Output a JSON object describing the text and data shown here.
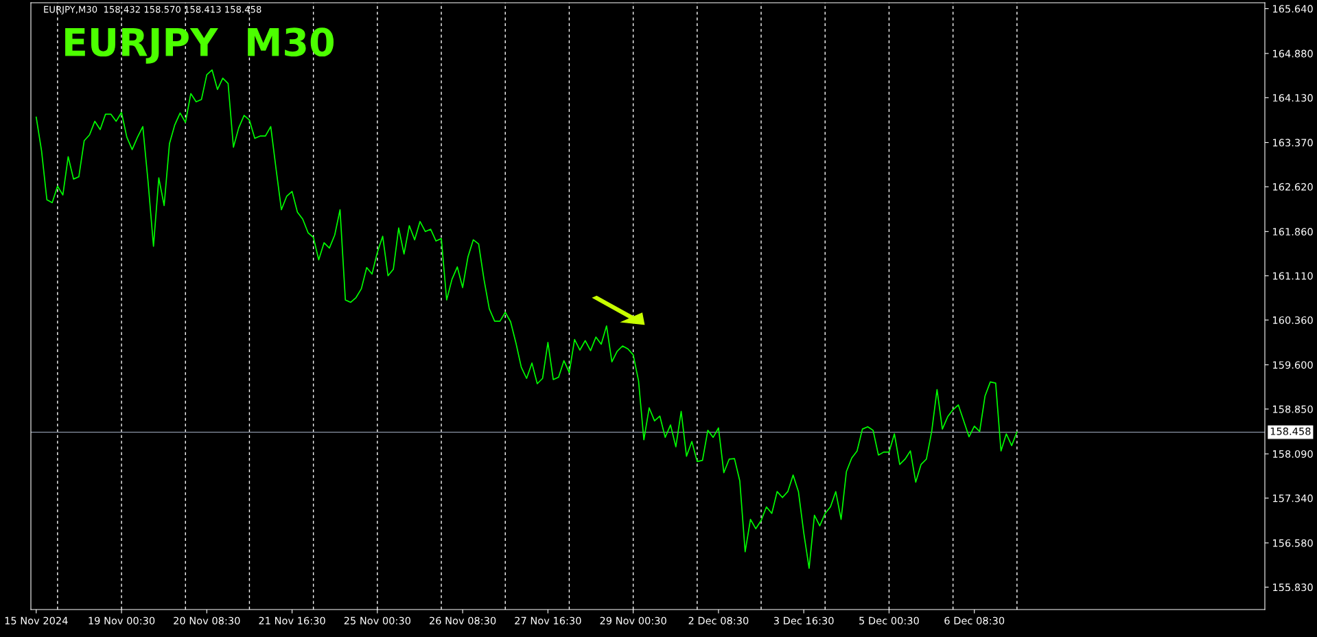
{
  "chart_data": {
    "type": "line",
    "title": "EURJPY  M30",
    "subtitle": "EURJPY,M30  158.432 158.570 158.413 158.458",
    "color": "#00ff00",
    "categories": [
      "15 Nov 2024",
      null,
      null,
      null,
      null,
      null,
      null,
      null,
      null,
      null,
      null,
      null,
      null,
      null,
      null,
      null,
      "19 Nov 00:30",
      null,
      null,
      null,
      null,
      null,
      null,
      null,
      null,
      null,
      null,
      null,
      null,
      null,
      null,
      null,
      "20 Nov 08:30",
      null,
      null,
      null,
      null,
      null,
      null,
      null,
      null,
      null,
      null,
      null,
      null,
      null,
      null,
      null,
      "21 Nov 16:30",
      null,
      null,
      null,
      null,
      null,
      null,
      null,
      null,
      null,
      null,
      null,
      null,
      null,
      null,
      null,
      "25 Nov 00:30",
      null,
      null,
      null,
      null,
      null,
      null,
      null,
      null,
      null,
      null,
      null,
      null,
      null,
      null,
      null,
      "26 Nov 08:30",
      null,
      null,
      null,
      null,
      null,
      null,
      null,
      null,
      null,
      null,
      null,
      null,
      null,
      null,
      null,
      "27 Nov 16:30",
      null,
      null,
      null,
      null,
      null,
      null,
      null,
      null,
      null,
      null,
      null,
      null,
      null,
      null,
      null,
      "29 Nov 00:30",
      null,
      null,
      null,
      null,
      null,
      null,
      null,
      null,
      null,
      null,
      null,
      null,
      null,
      null,
      null,
      "2 Dec 08:30",
      null,
      null,
      null,
      null,
      null,
      null,
      null,
      null,
      null,
      null,
      null,
      null,
      null,
      null,
      null,
      "3 Dec 16:30",
      null,
      null,
      null,
      null,
      null,
      null,
      null,
      null,
      null,
      null,
      null,
      null,
      null,
      null,
      null,
      "5 Dec 00:30",
      null,
      null,
      null,
      null,
      null,
      null,
      null,
      null,
      null,
      null,
      null,
      null,
      null,
      null,
      null,
      "6 Dec 08:30",
      null,
      null,
      null,
      null,
      null,
      null,
      null,
      null,
      null,
      null,
      null,
      null,
      null,
      null,
      null,
      null,
      null,
      null,
      null,
      null,
      null,
      null,
      null,
      null,
      null,
      null,
      null,
      null,
      null,
      null,
      null,
      null,
      null,
      null,
      null,
      null,
      null,
      null,
      null,
      null,
      null,
      null,
      null,
      null,
      null,
      null,
      null,
      null,
      null,
      null,
      null,
      null,
      null,
      null
    ],
    "values": [
      163.8,
      163.23,
      162.4,
      162.35,
      162.63,
      162.48,
      163.13,
      162.75,
      162.79,
      163.4,
      163.5,
      163.73,
      163.59,
      163.85,
      163.85,
      163.73,
      163.88,
      163.46,
      163.25,
      163.46,
      163.64,
      162.69,
      161.61,
      162.77,
      162.3,
      163.35,
      163.67,
      163.87,
      163.71,
      164.2,
      164.06,
      164.1,
      164.52,
      164.6,
      164.27,
      164.46,
      164.37,
      163.29,
      163.62,
      163.83,
      163.75,
      163.44,
      163.48,
      163.48,
      163.64,
      162.92,
      162.23,
      162.46,
      162.54,
      162.19,
      162.07,
      161.84,
      161.76,
      161.38,
      161.67,
      161.58,
      161.8,
      162.23,
      160.7,
      160.66,
      160.74,
      160.89,
      161.25,
      161.14,
      161.51,
      161.78,
      161.11,
      161.22,
      161.92,
      161.48,
      161.96,
      161.72,
      162.03,
      161.86,
      161.9,
      161.7,
      161.74,
      160.7,
      161.05,
      161.26,
      160.91,
      161.43,
      161.72,
      161.65,
      161.05,
      160.55,
      160.34,
      160.34,
      160.49,
      160.33,
      159.97,
      159.56,
      159.37,
      159.63,
      159.28,
      159.37,
      159.98,
      159.35,
      159.39,
      159.67,
      159.47,
      160.03,
      159.85,
      160.01,
      159.84,
      160.07,
      159.95,
      160.26,
      159.65,
      159.83,
      159.92,
      159.87,
      159.77,
      159.33,
      158.33,
      158.87,
      158.65,
      158.73,
      158.37,
      158.58,
      158.21,
      158.81,
      158.05,
      158.3,
      157.96,
      157.98,
      158.49,
      158.37,
      158.53,
      157.77,
      158.0,
      158.01,
      157.63,
      156.43,
      156.98,
      156.82,
      156.96,
      157.19,
      157.08,
      157.45,
      157.35,
      157.45,
      157.73,
      157.45,
      156.75,
      156.15,
      157.05,
      156.87,
      157.08,
      157.19,
      157.45,
      156.98,
      157.79,
      158.02,
      158.14,
      158.51,
      158.55,
      158.49,
      158.07,
      158.12,
      158.12,
      158.43,
      157.91,
      158.0,
      158.14,
      157.61,
      157.91,
      158.0,
      158.47,
      159.18,
      158.51,
      158.72,
      158.84,
      158.92,
      158.65,
      158.38,
      158.56,
      158.47,
      159.07,
      159.31,
      159.29,
      158.14,
      158.43,
      158.23,
      158.46,
      null,
      null,
      null,
      null,
      null,
      null,
      null,
      null,
      null,
      null,
      null,
      null,
      null,
      null,
      null,
      null,
      null,
      null,
      null,
      null,
      null,
      null,
      null,
      null,
      null,
      null,
      null,
      null,
      null,
      null,
      null,
      null,
      null,
      null,
      null,
      null,
      null,
      null,
      null,
      null,
      null,
      null,
      null,
      null,
      null,
      null
    ],
    "ylim": [
      155.45,
      165.74
    ],
    "yticks": [
      {
        "value": 155.83,
        "label": "155.830"
      },
      {
        "value": 156.58,
        "label": "156.580"
      },
      {
        "value": 157.34,
        "label": "157.340"
      },
      {
        "value": 158.09,
        "label": "158.090"
      },
      {
        "value": 158.85,
        "label": "158.850"
      },
      {
        "value": 159.6,
        "label": "159.600"
      },
      {
        "value": 160.36,
        "label": "160.360"
      },
      {
        "value": 161.11,
        "label": "161.110"
      },
      {
        "value": 161.86,
        "label": "161.860"
      },
      {
        "value": 162.62,
        "label": "162.620"
      },
      {
        "value": 163.37,
        "label": "163.370"
      },
      {
        "value": 164.13,
        "label": "164.130"
      },
      {
        "value": 164.88,
        "label": "164.880"
      },
      {
        "value": 165.64,
        "label": "165.640"
      }
    ],
    "ref_lines": [
      {
        "axis": "y",
        "value": 158.458,
        "label": "158.458",
        "color": "#8c96a8",
        "line_style": "solid"
      }
    ],
    "grid": false
  }
}
